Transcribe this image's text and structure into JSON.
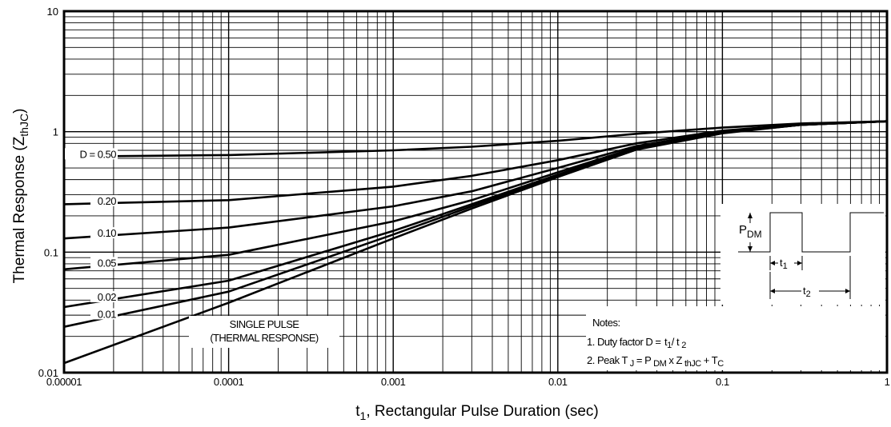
{
  "chart_data": {
    "type": "line",
    "x_scale": "log",
    "y_scale": "log",
    "xlim": [
      1e-05,
      1
    ],
    "ylim": [
      0.01,
      10
    ],
    "grid": true,
    "x_ticks": [
      "0.00001",
      "0.0001",
      "0.001",
      "0.01",
      "0.1",
      "1"
    ],
    "y_ticks": [
      "0.01",
      "0.1",
      "1",
      "10"
    ],
    "xlabel": {
      "prefix": "t",
      "sub": "1",
      "rest": ", Rectangular Pulse Duration (sec)"
    },
    "ylabel": {
      "main": "Thermal Response (Z",
      "sub": "thJC",
      "close": ")"
    },
    "series": [
      {
        "name": "D = 0.50",
        "x": [
          1e-05,
          0.0001,
          0.001,
          0.003,
          0.01,
          0.03,
          0.1,
          0.3,
          1
        ],
        "y": [
          0.62,
          0.64,
          0.7,
          0.75,
          0.84,
          0.96,
          1.08,
          1.17,
          1.22
        ]
      },
      {
        "name": "0.20",
        "x": [
          1e-05,
          0.0001,
          0.001,
          0.003,
          0.01,
          0.03,
          0.1,
          0.3,
          1
        ],
        "y": [
          0.25,
          0.27,
          0.35,
          0.43,
          0.58,
          0.8,
          1.02,
          1.15,
          1.22
        ]
      },
      {
        "name": "0.10",
        "x": [
          1e-05,
          0.0001,
          0.001,
          0.003,
          0.01,
          0.03,
          0.1,
          0.3,
          1
        ],
        "y": [
          0.13,
          0.16,
          0.24,
          0.32,
          0.5,
          0.76,
          1.0,
          1.14,
          1.22
        ]
      },
      {
        "name": "0.05",
        "x": [
          1e-05,
          0.0001,
          0.001,
          0.003,
          0.01,
          0.03,
          0.1,
          0.3,
          1
        ],
        "y": [
          0.072,
          0.095,
          0.18,
          0.27,
          0.46,
          0.74,
          0.99,
          1.14,
          1.22
        ]
      },
      {
        "name": "0.02",
        "x": [
          1e-05,
          0.0001,
          0.001,
          0.003,
          0.01,
          0.03,
          0.1,
          0.3,
          1
        ],
        "y": [
          0.035,
          0.058,
          0.15,
          0.25,
          0.44,
          0.73,
          0.98,
          1.14,
          1.22
        ]
      },
      {
        "name": "0.01",
        "x": [
          1e-05,
          0.0001,
          0.001,
          0.003,
          0.01,
          0.03,
          0.1,
          0.3,
          1
        ],
        "y": [
          0.024,
          0.047,
          0.14,
          0.24,
          0.43,
          0.72,
          0.98,
          1.14,
          1.22
        ]
      },
      {
        "name": "SINGLE PULSE",
        "x": [
          1e-05,
          0.0001,
          0.001,
          0.003,
          0.01,
          0.03,
          0.1,
          0.3,
          1
        ],
        "y": [
          0.012,
          0.038,
          0.13,
          0.23,
          0.42,
          0.71,
          0.97,
          1.14,
          1.22
        ]
      }
    ],
    "single_pulse_label": [
      "SINGLE PULSE",
      "(THERMAL RESPONSE)"
    ],
    "waveform": {
      "pdm": {
        "main": "P",
        "sub": "DM"
      },
      "t1": {
        "main": "t",
        "sub": "1"
      },
      "t2": {
        "main": "t",
        "sub": "2"
      }
    },
    "notes": {
      "title": "Notes:",
      "line1": {
        "a": "1. Duty factor D = ",
        "b": "t",
        "b_sub": "1",
        "c": "/ t ",
        "c_sub": "2"
      },
      "line2": {
        "a": "2. Peak T ",
        "a_sub": "J",
        "b": " = P ",
        "b_sub": "DM",
        "c": " x  Z ",
        "c_sub": "thJC",
        "d": "  + T",
        "d_sub": "C"
      }
    }
  }
}
